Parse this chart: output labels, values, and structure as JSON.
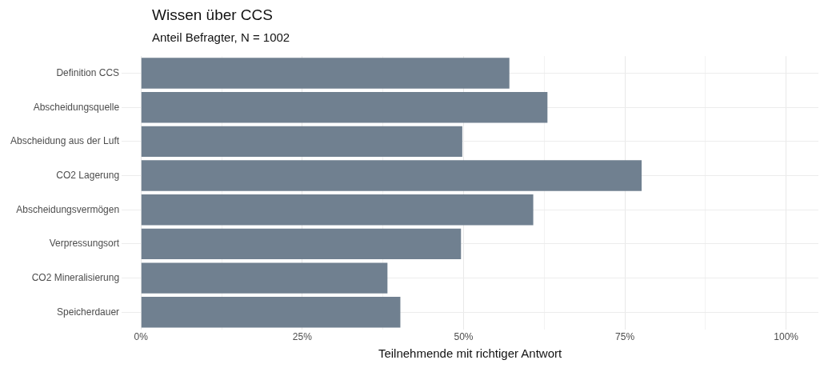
{
  "chart_data": {
    "type": "bar",
    "orientation": "horizontal",
    "title": "Wissen über CCS",
    "subtitle": "Anteil Befragter, N = 1002",
    "xlabel": "Teilnehmende mit richtiger Antwort",
    "categories": [
      "Definition CCS",
      "Abscheidungsquelle",
      "Abscheidung aus der Luft",
      "CO2 Lagerung",
      "Abscheidungsvermögen",
      "Verpressungsort",
      "CO2 Mineralisierung",
      "Speicherdauer"
    ],
    "values": [
      57.1,
      63.0,
      49.8,
      77.6,
      60.8,
      49.6,
      38.2,
      40.2
    ],
    "color": "#708090",
    "xlim": [
      -3,
      105
    ],
    "xticks": [
      {
        "value": 0,
        "label": "0%"
      },
      {
        "value": 12.5,
        "label": null
      },
      {
        "value": 25,
        "label": "25%"
      },
      {
        "value": 37.5,
        "label": null
      },
      {
        "value": 50,
        "label": "50%"
      },
      {
        "value": 62.5,
        "label": null
      },
      {
        "value": 75,
        "label": "75%"
      },
      {
        "value": 87.5,
        "label": null
      },
      {
        "value": 100,
        "label": "100%"
      }
    ],
    "grid": true,
    "legend": false
  }
}
